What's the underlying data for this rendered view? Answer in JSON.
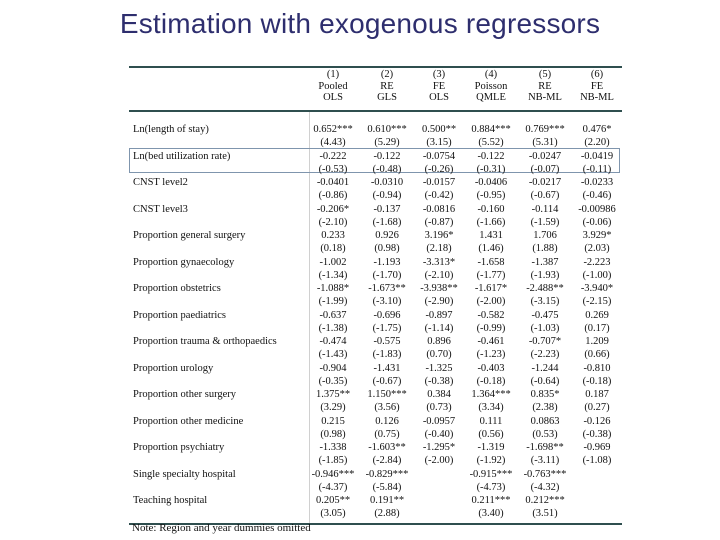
{
  "slide": {
    "title": "Estimation with exogenous regressors",
    "note": "Note: Region and year dummies omitted"
  },
  "table": {
    "columns": [
      {
        "num": "(1)",
        "line1": "Pooled",
        "line2": "OLS"
      },
      {
        "num": "(2)",
        "line1": "RE",
        "line2": "GLS"
      },
      {
        "num": "(3)",
        "line1": "FE",
        "line2": "OLS"
      },
      {
        "num": "(4)",
        "line1": "Poisson",
        "line2": "QMLE"
      },
      {
        "num": "(5)",
        "line1": "RE",
        "line2": "NB-ML"
      },
      {
        "num": "(6)",
        "line1": "FE",
        "line2": "NB-ML"
      }
    ],
    "rows": [
      {
        "label": "Ln(length of stay)",
        "coef": [
          "0.652***",
          "0.610***",
          "0.500**",
          "0.884***",
          "0.769***",
          "0.476*"
        ],
        "se": [
          "(4.43)",
          "(5.29)",
          "(3.15)",
          "(5.52)",
          "(5.31)",
          "(2.20)"
        ]
      },
      {
        "label": "Ln(bed utilization rate)",
        "coef": [
          "-0.222",
          "-0.122",
          "-0.0754",
          "-0.122",
          "-0.0247",
          "-0.0419"
        ],
        "se": [
          "(-0.53)",
          "(-0.48)",
          "(-0.26)",
          "(-0.31)",
          "(-0.07)",
          "(-0.11)"
        ]
      },
      {
        "label": "CNST level2",
        "coef": [
          "-0.0401",
          "-0.0310",
          "-0.0157",
          "-0.0406",
          "-0.0217",
          "-0.0233"
        ],
        "se": [
          "(-0.86)",
          "(-0.94)",
          "(-0.42)",
          "(-0.95)",
          "(-0.67)",
          "(-0.46)"
        ]
      },
      {
        "label": "CNST level3",
        "coef": [
          "-0.206*",
          "-0.137",
          "-0.0816",
          "-0.160",
          "-0.114",
          "-0.00986"
        ],
        "se": [
          "(-2.10)",
          "(-1.68)",
          "(-0.87)",
          "(-1.66)",
          "(-1.59)",
          "(-0.06)"
        ]
      },
      {
        "label": "Proportion general surgery",
        "coef": [
          "0.233",
          "0.926",
          "3.196*",
          "1.431",
          "1.706",
          "3.929*"
        ],
        "se": [
          "(0.18)",
          "(0.98)",
          "(2.18)",
          "(1.46)",
          "(1.88)",
          "(2.03)"
        ]
      },
      {
        "label": "Proportion gynaecology",
        "coef": [
          "-1.002",
          "-1.193",
          "-3.313*",
          "-1.658",
          "-1.387",
          "-2.223"
        ],
        "se": [
          "(-1.34)",
          "(-1.70)",
          "(-2.10)",
          "(-1.77)",
          "(-1.93)",
          "(-1.00)"
        ]
      },
      {
        "label": "Proportion obstetrics",
        "coef": [
          "-1.088*",
          "-1.673**",
          "-3.938**",
          "-1.617*",
          "-2.488**",
          "-3.940*"
        ],
        "se": [
          "(-1.99)",
          "(-3.10)",
          "(-2.90)",
          "(-2.00)",
          "(-3.15)",
          "(-2.15)"
        ]
      },
      {
        "label": "Proportion paediatrics",
        "coef": [
          "-0.637",
          "-0.696",
          "-0.897",
          "-0.582",
          "-0.475",
          "0.269"
        ],
        "se": [
          "(-1.38)",
          "(-1.75)",
          "(-1.14)",
          "(-0.99)",
          "(-1.03)",
          "(0.17)"
        ]
      },
      {
        "label": "Proportion trauma & orthopaedics",
        "coef": [
          "-0.474",
          "-0.575",
          "0.896",
          "-0.461",
          "-0.707*",
          "1.209"
        ],
        "se": [
          "(-1.43)",
          "(-1.83)",
          "(0.70)",
          "(-1.23)",
          "(-2.23)",
          "(0.66)"
        ]
      },
      {
        "label": "Proportion urology",
        "coef": [
          "-0.904",
          "-1.431",
          "-1.325",
          "-0.403",
          "-1.244",
          "-0.810"
        ],
        "se": [
          "(-0.35)",
          "(-0.67)",
          "(-0.38)",
          "(-0.18)",
          "(-0.64)",
          "(-0.18)"
        ]
      },
      {
        "label": "Proportion other surgery",
        "coef": [
          "1.375**",
          "1.150***",
          "0.384",
          "1.364***",
          "0.835*",
          "0.187"
        ],
        "se": [
          "(3.29)",
          "(3.56)",
          "(0.73)",
          "(3.34)",
          "(2.38)",
          "(0.27)"
        ]
      },
      {
        "label": "Proportion other medicine",
        "coef": [
          "0.215",
          "0.126",
          "-0.0957",
          "0.111",
          "0.0863",
          "-0.126"
        ],
        "se": [
          "(0.98)",
          "(0.75)",
          "(-0.40)",
          "(0.56)",
          "(0.53)",
          "(-0.38)"
        ]
      },
      {
        "label": "Proportion psychiatry",
        "coef": [
          "-1.338",
          "-1.603**",
          "-1.295*",
          "-1.319",
          "-1.698**",
          "-0.969"
        ],
        "se": [
          "(-1.85)",
          "(-2.84)",
          "(-2.00)",
          "(-1.92)",
          "(-3.11)",
          "(-1.08)"
        ]
      },
      {
        "label": "Single specialty hospital",
        "coef": [
          "-0.946***",
          "-0.829***",
          "",
          "-0.915***",
          "-0.763***",
          ""
        ],
        "se": [
          "(-4.37)",
          "(-5.84)",
          "",
          "(-4.73)",
          "(-4.32)",
          ""
        ]
      },
      {
        "label": "Teaching hospital",
        "coef": [
          "0.205**",
          "0.191**",
          "",
          "0.211***",
          "0.212***",
          ""
        ],
        "se": [
          "(3.05)",
          "(2.88)",
          "",
          "(3.40)",
          "(3.51)",
          ""
        ]
      }
    ]
  }
}
